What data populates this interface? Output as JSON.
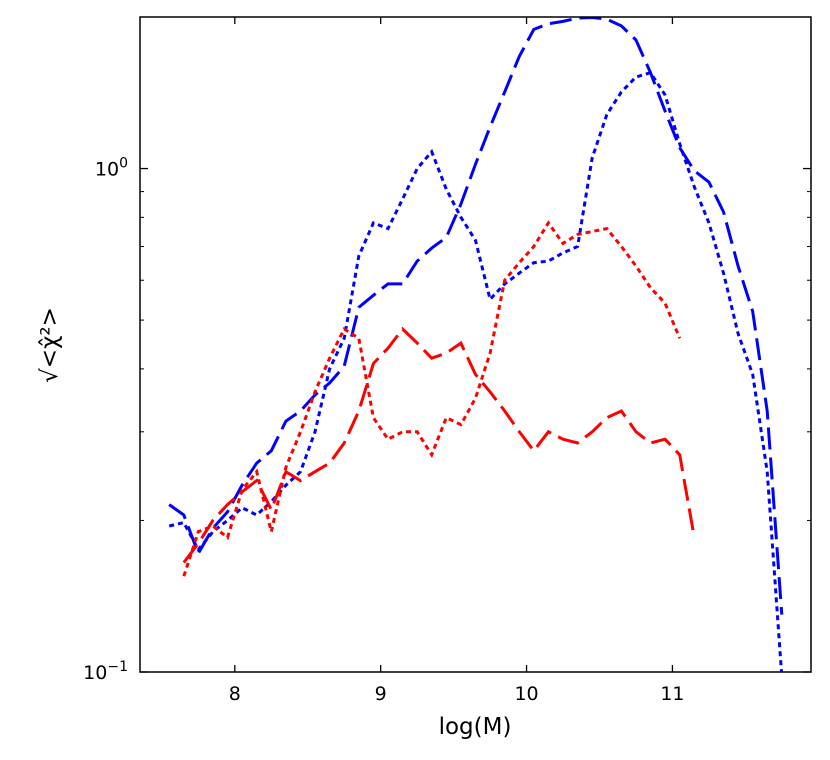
{
  "chart_data": {
    "type": "line",
    "title": "",
    "xlabel": "log(M)",
    "ylabel": "√<χ̂²>",
    "xlim": [
      7.35,
      11.95
    ],
    "ylim": [
      0.1,
      2.0
    ],
    "yscale": "log",
    "x_ticks": [
      8,
      9,
      10,
      11
    ],
    "x_tick_labels": [
      "8",
      "9",
      "10",
      "11"
    ],
    "y_ticks": [
      0.1,
      1.0
    ],
    "y_tick_labels": [
      {
        "base": "10",
        "exp": "−1"
      },
      {
        "base": "10",
        "exp": "0"
      }
    ],
    "grid": false,
    "legend": "none",
    "series": [
      {
        "color": "#0000ff",
        "dash": "long-dash",
        "x": [
          7.55,
          7.65,
          7.75,
          7.85,
          7.95,
          8.05,
          8.15,
          8.25,
          8.35,
          8.45,
          8.55,
          8.65,
          8.75,
          8.85,
          8.95,
          9.05,
          9.15,
          9.25,
          9.35,
          9.45,
          9.55,
          9.65,
          9.75,
          9.85,
          9.95,
          10.05,
          10.15,
          10.25,
          10.35,
          10.45,
          10.55,
          10.65,
          10.75,
          10.85,
          10.95,
          11.05,
          11.15,
          11.25,
          11.35,
          11.45,
          11.55,
          11.65,
          11.75
        ],
        "y": [
          0.215,
          0.205,
          0.172,
          0.193,
          0.208,
          0.235,
          0.26,
          0.275,
          0.315,
          0.33,
          0.355,
          0.375,
          0.405,
          0.53,
          0.56,
          0.59,
          0.59,
          0.655,
          0.695,
          0.73,
          0.85,
          1.02,
          1.21,
          1.42,
          1.67,
          1.89,
          1.94,
          1.96,
          1.99,
          1.995,
          1.98,
          1.92,
          1.8,
          1.55,
          1.3,
          1.1,
          0.99,
          0.94,
          0.82,
          0.64,
          0.52,
          0.33,
          0.13
        ]
      },
      {
        "color": "#0000ff",
        "dash": "dotted",
        "x": [
          7.55,
          7.65,
          7.75,
          7.85,
          7.95,
          8.05,
          8.15,
          8.25,
          8.35,
          8.45,
          8.55,
          8.65,
          8.75,
          8.85,
          8.95,
          9.05,
          9.15,
          9.25,
          9.35,
          9.45,
          9.55,
          9.65,
          9.75,
          9.85,
          9.95,
          10.05,
          10.15,
          10.25,
          10.35,
          10.45,
          10.55,
          10.65,
          10.75,
          10.85,
          10.95,
          11.05,
          11.15,
          11.25,
          11.35,
          11.45,
          11.55,
          11.65,
          11.75
        ],
        "y": [
          0.195,
          0.198,
          0.175,
          0.19,
          0.2,
          0.212,
          0.205,
          0.218,
          0.235,
          0.25,
          0.3,
          0.4,
          0.46,
          0.67,
          0.78,
          0.76,
          0.87,
          1.0,
          1.08,
          0.91,
          0.8,
          0.72,
          0.55,
          0.59,
          0.62,
          0.65,
          0.655,
          0.68,
          0.7,
          1.05,
          1.28,
          1.42,
          1.52,
          1.55,
          1.4,
          1.12,
          0.92,
          0.78,
          0.62,
          0.47,
          0.39,
          0.25,
          0.098
        ]
      },
      {
        "color": "#ff0000",
        "dash": "long-dash",
        "x": [
          7.65,
          7.75,
          7.85,
          7.95,
          8.05,
          8.15,
          8.25,
          8.35,
          8.45,
          8.55,
          8.65,
          8.75,
          8.85,
          8.95,
          9.05,
          9.15,
          9.25,
          9.35,
          9.45,
          9.55,
          9.65,
          9.75,
          9.85,
          9.95,
          10.05,
          10.15,
          10.25,
          10.35,
          10.45,
          10.55,
          10.65,
          10.75,
          10.85,
          10.95,
          11.05,
          11.15
        ],
        "y": [
          0.165,
          0.18,
          0.2,
          0.215,
          0.228,
          0.24,
          0.21,
          0.25,
          0.24,
          0.25,
          0.26,
          0.285,
          0.33,
          0.41,
          0.44,
          0.48,
          0.45,
          0.42,
          0.43,
          0.45,
          0.39,
          0.36,
          0.33,
          0.3,
          0.275,
          0.3,
          0.29,
          0.285,
          0.3,
          0.32,
          0.33,
          0.3,
          0.285,
          0.29,
          0.27,
          0.185
        ]
      },
      {
        "color": "#ff0000",
        "dash": "dotted",
        "x": [
          7.65,
          7.75,
          7.85,
          7.95,
          8.05,
          8.15,
          8.25,
          8.35,
          8.45,
          8.55,
          8.65,
          8.75,
          8.85,
          8.95,
          9.05,
          9.15,
          9.25,
          9.35,
          9.45,
          9.55,
          9.65,
          9.75,
          9.85,
          9.95,
          10.05,
          10.15,
          10.25,
          10.35,
          10.45,
          10.55,
          10.65,
          10.75,
          10.85,
          10.95,
          11.05
        ],
        "y": [
          0.155,
          0.19,
          0.195,
          0.185,
          0.23,
          0.25,
          0.19,
          0.255,
          0.3,
          0.36,
          0.42,
          0.48,
          0.46,
          0.32,
          0.29,
          0.3,
          0.3,
          0.27,
          0.32,
          0.31,
          0.35,
          0.43,
          0.6,
          0.65,
          0.7,
          0.78,
          0.71,
          0.74,
          0.75,
          0.76,
          0.7,
          0.64,
          0.58,
          0.54,
          0.46
        ]
      }
    ]
  }
}
